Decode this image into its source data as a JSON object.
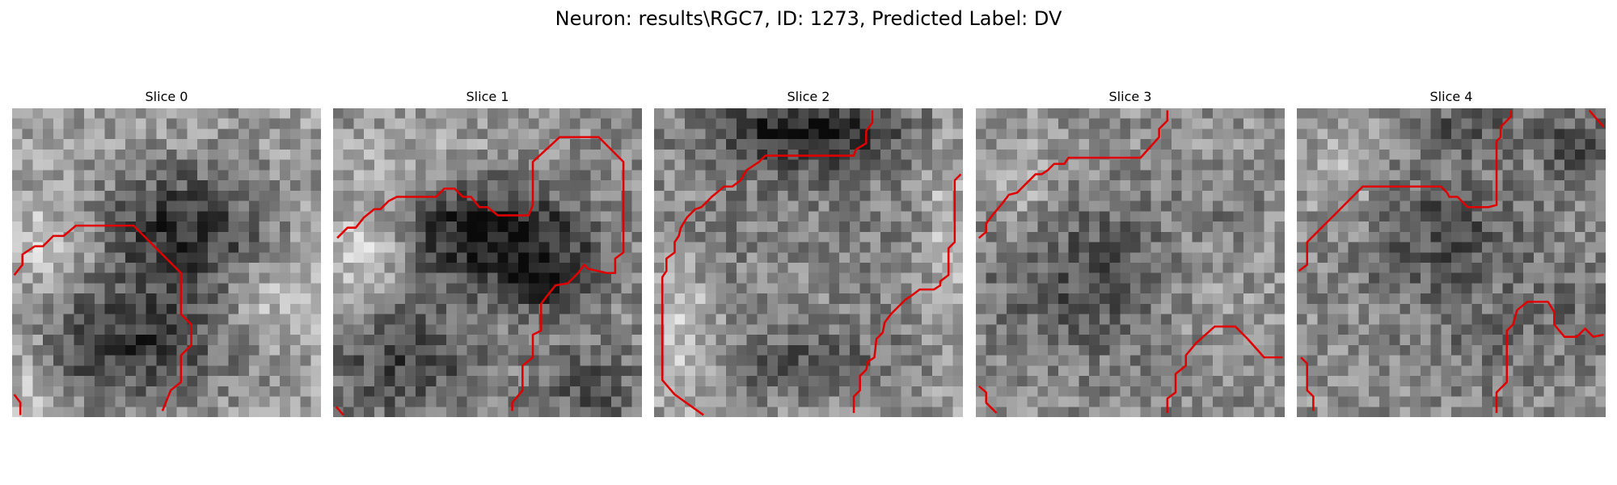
{
  "figure": {
    "title": "Neuron: results\\RGC7, ID: 1273, Predicted Label: DV",
    "contour_color": "#e00000"
  },
  "panels": [
    {
      "title": "Slice 0"
    },
    {
      "title": "Slice 1"
    },
    {
      "title": "Slice 2"
    },
    {
      "title": "Slice 3"
    },
    {
      "title": "Slice 4"
    }
  ]
}
